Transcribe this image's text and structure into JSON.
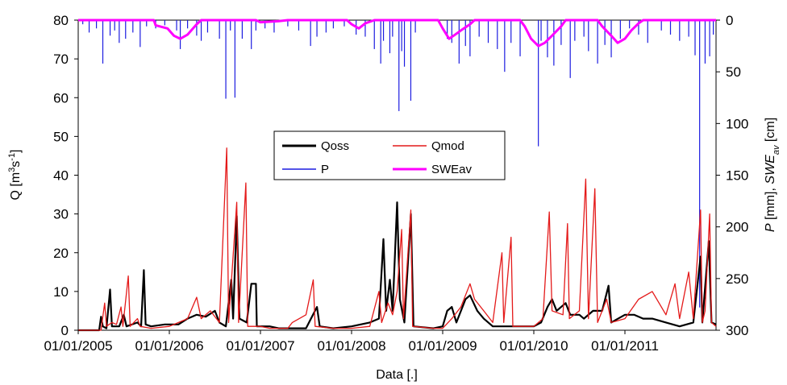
{
  "chart_data": {
    "type": "line",
    "xlabel": "Data [.]",
    "ylabel_left": {
      "main": "Q [m",
      "sup1": "3",
      "mid": "s",
      "sup2": "-1",
      "end": "]"
    },
    "ylabel_right": {
      "p1": "P",
      "p2": " [mm], ",
      "p3": "SWE",
      "p4": "av",
      "p5": " [cm]"
    },
    "x_ticks": [
      "01/01/2005",
      "01/01/2006",
      "01/01/2007",
      "01/01/2008",
      "01/01/2009",
      "01/01/2010",
      "01/01/2011"
    ],
    "x_range": [
      2005.0,
      2012.0
    ],
    "y_left": {
      "range": [
        0,
        80
      ],
      "ticks": [
        "0",
        "10",
        "20",
        "30",
        "40",
        "50",
        "60",
        "70",
        "80"
      ]
    },
    "y_right": {
      "range": [
        0,
        300
      ],
      "inverted": true,
      "ticks": [
        "0",
        "50",
        "100",
        "150",
        "200",
        "250",
        "300"
      ]
    },
    "colors": {
      "Qoss": "#000000",
      "Qmod": "#e41a1a",
      "P": "#1c1ce0",
      "SWEav": "#ff00ff"
    },
    "legend": {
      "position": "center",
      "entries": [
        "Qoss",
        "Qmod",
        "P",
        "SWEav"
      ]
    },
    "grid": false,
    "series": [
      {
        "name": "Qoss",
        "axis": "left",
        "points": [
          [
            2005.0,
            0
          ],
          [
            2005.23,
            0
          ],
          [
            2005.25,
            3.5
          ],
          [
            2005.27,
            1
          ],
          [
            2005.31,
            0.5
          ],
          [
            2005.35,
            10.5
          ],
          [
            2005.37,
            1
          ],
          [
            2005.45,
            1
          ],
          [
            2005.5,
            4
          ],
          [
            2005.53,
            1
          ],
          [
            2005.65,
            2
          ],
          [
            2005.69,
            1
          ],
          [
            2005.72,
            15.5
          ],
          [
            2005.74,
            1.5
          ],
          [
            2005.8,
            1
          ],
          [
            2005.95,
            1.5
          ],
          [
            2006.1,
            1.5
          ],
          [
            2006.2,
            3
          ],
          [
            2006.3,
            4
          ],
          [
            2006.4,
            3.5
          ],
          [
            2006.5,
            5
          ],
          [
            2006.55,
            2
          ],
          [
            2006.62,
            1
          ],
          [
            2006.68,
            13
          ],
          [
            2006.7,
            3
          ],
          [
            2006.74,
            29.5
          ],
          [
            2006.77,
            3
          ],
          [
            2006.85,
            2
          ],
          [
            2006.9,
            12
          ],
          [
            2006.95,
            12
          ],
          [
            2006.96,
            1
          ],
          [
            2007.1,
            1
          ],
          [
            2007.2,
            0.5
          ],
          [
            2007.5,
            0.5
          ],
          [
            2007.62,
            6
          ],
          [
            2007.65,
            1
          ],
          [
            2007.8,
            0.5
          ],
          [
            2008.0,
            1
          ],
          [
            2008.2,
            2
          ],
          [
            2008.3,
            3
          ],
          [
            2008.35,
            23.5
          ],
          [
            2008.38,
            5
          ],
          [
            2008.42,
            13
          ],
          [
            2008.45,
            5
          ],
          [
            2008.5,
            33
          ],
          [
            2008.53,
            8
          ],
          [
            2008.58,
            2
          ],
          [
            2008.65,
            30
          ],
          [
            2008.68,
            1
          ],
          [
            2008.9,
            0.5
          ],
          [
            2009.0,
            1
          ],
          [
            2009.05,
            5
          ],
          [
            2009.1,
            6
          ],
          [
            2009.15,
            2
          ],
          [
            2009.25,
            8
          ],
          [
            2009.3,
            9
          ],
          [
            2009.38,
            5
          ],
          [
            2009.45,
            3
          ],
          [
            2009.55,
            1
          ],
          [
            2009.7,
            1
          ],
          [
            2009.8,
            1
          ],
          [
            2010.0,
            1
          ],
          [
            2010.08,
            2
          ],
          [
            2010.15,
            6
          ],
          [
            2010.2,
            8
          ],
          [
            2010.25,
            5
          ],
          [
            2010.35,
            7
          ],
          [
            2010.4,
            4
          ],
          [
            2010.5,
            4
          ],
          [
            2010.55,
            3
          ],
          [
            2010.65,
            5
          ],
          [
            2010.75,
            5
          ],
          [
            2010.82,
            11.5
          ],
          [
            2010.85,
            2
          ],
          [
            2011.0,
            4
          ],
          [
            2011.1,
            4
          ],
          [
            2011.2,
            3
          ],
          [
            2011.3,
            3
          ],
          [
            2011.45,
            2
          ],
          [
            2011.6,
            1
          ],
          [
            2011.75,
            2
          ],
          [
            2011.83,
            19
          ],
          [
            2011.85,
            2
          ],
          [
            2011.92,
            23
          ],
          [
            2011.95,
            2
          ],
          [
            2012.0,
            1.5
          ]
        ]
      },
      {
        "name": "Qmod",
        "axis": "left",
        "points": [
          [
            2005.0,
            0
          ],
          [
            2005.25,
            0
          ],
          [
            2005.29,
            7
          ],
          [
            2005.31,
            1
          ],
          [
            2005.37,
            2
          ],
          [
            2005.42,
            1.5
          ],
          [
            2005.47,
            6
          ],
          [
            2005.49,
            1
          ],
          [
            2005.55,
            14
          ],
          [
            2005.57,
            1
          ],
          [
            2005.65,
            3
          ],
          [
            2005.68,
            1
          ],
          [
            2005.8,
            0.5
          ],
          [
            2006.0,
            1
          ],
          [
            2006.2,
            3
          ],
          [
            2006.3,
            8.5
          ],
          [
            2006.35,
            3
          ],
          [
            2006.45,
            5
          ],
          [
            2006.55,
            2
          ],
          [
            2006.63,
            47
          ],
          [
            2006.65,
            2
          ],
          [
            2006.74,
            33
          ],
          [
            2006.76,
            2
          ],
          [
            2006.84,
            38
          ],
          [
            2006.86,
            1
          ],
          [
            2007.0,
            1
          ],
          [
            2007.1,
            0.5
          ],
          [
            2007.3,
            0.5
          ],
          [
            2007.35,
            2
          ],
          [
            2007.5,
            4
          ],
          [
            2007.58,
            13
          ],
          [
            2007.6,
            1
          ],
          [
            2007.8,
            0.5
          ],
          [
            2008.0,
            0.5
          ],
          [
            2008.2,
            1
          ],
          [
            2008.3,
            10
          ],
          [
            2008.33,
            2
          ],
          [
            2008.4,
            7
          ],
          [
            2008.45,
            4
          ],
          [
            2008.5,
            10
          ],
          [
            2008.55,
            26
          ],
          [
            2008.57,
            3
          ],
          [
            2008.65,
            31
          ],
          [
            2008.67,
            1
          ],
          [
            2008.9,
            0.5
          ],
          [
            2009.0,
            0.5
          ],
          [
            2009.1,
            3
          ],
          [
            2009.2,
            6
          ],
          [
            2009.3,
            12
          ],
          [
            2009.35,
            8
          ],
          [
            2009.45,
            5
          ],
          [
            2009.55,
            2
          ],
          [
            2009.65,
            20
          ],
          [
            2009.67,
            2
          ],
          [
            2009.75,
            24
          ],
          [
            2009.77,
            1
          ],
          [
            2010.0,
            1
          ],
          [
            2010.1,
            3
          ],
          [
            2010.17,
            30.5
          ],
          [
            2010.2,
            5
          ],
          [
            2010.32,
            4
          ],
          [
            2010.37,
            27.5
          ],
          [
            2010.39,
            3
          ],
          [
            2010.5,
            5
          ],
          [
            2010.57,
            39
          ],
          [
            2010.6,
            3
          ],
          [
            2010.67,
            36.5
          ],
          [
            2010.7,
            2
          ],
          [
            2010.8,
            8
          ],
          [
            2010.85,
            2
          ],
          [
            2011.0,
            3
          ],
          [
            2011.15,
            8
          ],
          [
            2011.3,
            10
          ],
          [
            2011.45,
            4
          ],
          [
            2011.55,
            12
          ],
          [
            2011.6,
            3
          ],
          [
            2011.7,
            15
          ],
          [
            2011.75,
            3
          ],
          [
            2011.83,
            31
          ],
          [
            2011.85,
            2
          ],
          [
            2011.88,
            5
          ],
          [
            2011.93,
            30
          ],
          [
            2011.95,
            2
          ],
          [
            2012.0,
            1
          ]
        ]
      },
      {
        "name": "SWEav",
        "axis": "right",
        "points": [
          [
            2005.0,
            0
          ],
          [
            2005.83,
            0
          ],
          [
            2005.85,
            5
          ],
          [
            2005.98,
            8
          ],
          [
            2006.05,
            15
          ],
          [
            2006.12,
            18
          ],
          [
            2006.2,
            14
          ],
          [
            2006.3,
            4
          ],
          [
            2006.35,
            0
          ],
          [
            2006.95,
            0
          ],
          [
            2007.0,
            2
          ],
          [
            2007.2,
            1
          ],
          [
            2007.3,
            0
          ],
          [
            2007.95,
            0
          ],
          [
            2008.0,
            4
          ],
          [
            2008.08,
            8
          ],
          [
            2008.15,
            3
          ],
          [
            2008.25,
            0
          ],
          [
            2008.95,
            0
          ],
          [
            2009.0,
            8
          ],
          [
            2009.07,
            18
          ],
          [
            2009.12,
            15
          ],
          [
            2009.2,
            10
          ],
          [
            2009.3,
            4
          ],
          [
            2009.35,
            0
          ],
          [
            2009.85,
            0
          ],
          [
            2009.9,
            6
          ],
          [
            2009.97,
            18
          ],
          [
            2010.05,
            25
          ],
          [
            2010.12,
            22
          ],
          [
            2010.2,
            15
          ],
          [
            2010.3,
            6
          ],
          [
            2010.35,
            0
          ],
          [
            2010.7,
            0
          ],
          [
            2010.75,
            6
          ],
          [
            2010.85,
            15
          ],
          [
            2010.92,
            22
          ],
          [
            2011.0,
            18
          ],
          [
            2011.07,
            10
          ],
          [
            2011.15,
            3
          ],
          [
            2011.2,
            0
          ],
          [
            2012.0,
            0
          ]
        ]
      },
      {
        "name": "P",
        "axis": "right",
        "points": [
          [
            2005.05,
            4
          ],
          [
            2005.12,
            12
          ],
          [
            2005.2,
            8
          ],
          [
            2005.27,
            42
          ],
          [
            2005.35,
            15
          ],
          [
            2005.4,
            10
          ],
          [
            2005.45,
            22
          ],
          [
            2005.52,
            18
          ],
          [
            2005.6,
            12
          ],
          [
            2005.68,
            26
          ],
          [
            2005.75,
            6
          ],
          [
            2005.85,
            8
          ],
          [
            2005.95,
            5
          ],
          [
            2006.08,
            10
          ],
          [
            2006.12,
            28
          ],
          [
            2006.2,
            8
          ],
          [
            2006.3,
            15
          ],
          [
            2006.35,
            20
          ],
          [
            2006.42,
            12
          ],
          [
            2006.55,
            18
          ],
          [
            2006.62,
            76
          ],
          [
            2006.67,
            10
          ],
          [
            2006.72,
            75
          ],
          [
            2006.8,
            18
          ],
          [
            2006.9,
            28
          ],
          [
            2006.95,
            10
          ],
          [
            2007.05,
            8
          ],
          [
            2007.15,
            12
          ],
          [
            2007.3,
            6
          ],
          [
            2007.42,
            10
          ],
          [
            2007.55,
            25
          ],
          [
            2007.62,
            16
          ],
          [
            2007.72,
            12
          ],
          [
            2007.8,
            8
          ],
          [
            2007.92,
            6
          ],
          [
            2008.05,
            14
          ],
          [
            2008.15,
            16
          ],
          [
            2008.25,
            28
          ],
          [
            2008.32,
            42
          ],
          [
            2008.35,
            20
          ],
          [
            2008.42,
            32
          ],
          [
            2008.45,
            16
          ],
          [
            2008.52,
            88
          ],
          [
            2008.55,
            30
          ],
          [
            2008.58,
            45
          ],
          [
            2008.65,
            78
          ],
          [
            2008.7,
            12
          ],
          [
            2009.05,
            18
          ],
          [
            2009.1,
            22
          ],
          [
            2009.18,
            42
          ],
          [
            2009.25,
            25
          ],
          [
            2009.3,
            35
          ],
          [
            2009.4,
            16
          ],
          [
            2009.5,
            22
          ],
          [
            2009.6,
            28
          ],
          [
            2009.68,
            50
          ],
          [
            2009.75,
            22
          ],
          [
            2009.85,
            35
          ],
          [
            2010.05,
            122
          ],
          [
            2010.08,
            20
          ],
          [
            2010.15,
            36
          ],
          [
            2010.22,
            44
          ],
          [
            2010.3,
            24
          ],
          [
            2010.4,
            56
          ],
          [
            2010.45,
            20
          ],
          [
            2010.55,
            16
          ],
          [
            2010.6,
            30
          ],
          [
            2010.7,
            42
          ],
          [
            2010.78,
            24
          ],
          [
            2010.85,
            36
          ],
          [
            2010.95,
            18
          ],
          [
            2011.05,
            8
          ],
          [
            2011.15,
            14
          ],
          [
            2011.25,
            22
          ],
          [
            2011.4,
            10
          ],
          [
            2011.5,
            14
          ],
          [
            2011.6,
            20
          ],
          [
            2011.7,
            16
          ],
          [
            2011.77,
            34
          ],
          [
            2011.82,
            278
          ],
          [
            2011.88,
            42
          ],
          [
            2011.93,
            35
          ],
          [
            2011.97,
            14
          ]
        ]
      }
    ]
  }
}
